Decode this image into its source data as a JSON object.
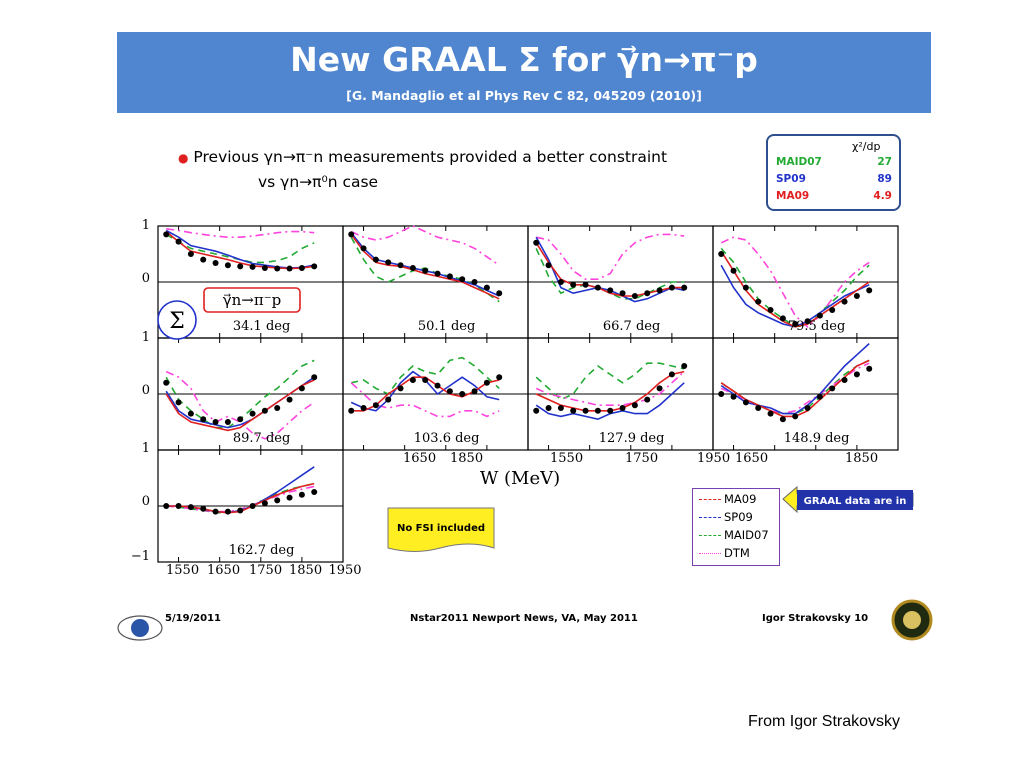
{
  "slide": {
    "title": "New GRAAL Σ for γ⃗n→π⁻p",
    "reference": "[G. Mandaglio et al Phys Rev C 82, 045209 (2010)]",
    "bullet_line1": "Previous γn→π⁻n measurements provided a better constraint",
    "bullet_line2": "vs γn→π⁰n case",
    "chi2_header": "χ²/dp",
    "chi2_rows": [
      {
        "name": "MAID07",
        "value": "27",
        "color": "#22aa33"
      },
      {
        "name": "SP09",
        "value": "89",
        "color": "#2233cc"
      },
      {
        "name": "MA09",
        "value": "4.9",
        "color": "#e02020"
      }
    ],
    "reaction_label": "γ⃗n→π⁻p",
    "sigma_symbol": "Σ",
    "note": "No FSI included",
    "graal_arrow_text": "GRAAL data are in",
    "footer_date": "5/19/2011",
    "footer_conf": "Nstar2011 Newport News, VA, May 2011",
    "footer_author": "Igor Strakovsky   10",
    "caption": "From Igor Strakovsky"
  },
  "chart_data": {
    "type": "line",
    "xlabel": "W (MeV)",
    "ylabel": "",
    "xlim": [
      1500,
      1950
    ],
    "ylim": [
      -1,
      1
    ],
    "xticks": [
      1550,
      1650,
      1750,
      1850,
      1950
    ],
    "x_tick_labels_row3": [
      "1550",
      "1650",
      "1750",
      "1850"
    ],
    "x_tick_labels_row2": [
      "1650",
      "1850",
      "1550",
      "1750",
      "1950",
      "1650",
      "1850"
    ],
    "y_tick_labels": [
      "1",
      "0",
      "1",
      "0",
      "1",
      "0",
      "1",
      "0",
      "−1"
    ],
    "legend": [
      {
        "name": "MA09",
        "color": "#e02020",
        "style": "dashed"
      },
      {
        "name": "SP09",
        "color": "#2233cc",
        "style": "dashed"
      },
      {
        "name": "MAID07",
        "color": "#22aa33",
        "style": "dashed"
      },
      {
        "name": "DTM",
        "color": "#ff44dd",
        "style": "dashdot"
      }
    ],
    "panels": [
      {
        "label": "34.1 deg",
        "x": [
          1520,
          1550,
          1580,
          1610,
          1640,
          1670,
          1700,
          1730,
          1760,
          1790,
          1820,
          1850,
          1880
        ],
        "data": [
          0.85,
          0.72,
          0.5,
          0.4,
          0.34,
          0.3,
          0.28,
          0.27,
          0.25,
          0.24,
          0.24,
          0.25,
          0.28
        ],
        "MA09": [
          0.9,
          0.72,
          0.55,
          0.5,
          0.45,
          0.4,
          0.34,
          0.29,
          0.27,
          0.25,
          0.24,
          0.25,
          0.28
        ],
        "SP09": [
          0.92,
          0.8,
          0.65,
          0.6,
          0.55,
          0.48,
          0.4,
          0.33,
          0.3,
          0.27,
          0.25,
          0.26,
          0.3
        ],
        "MAID07": [
          0.85,
          0.72,
          0.6,
          0.55,
          0.5,
          0.45,
          0.4,
          0.35,
          0.35,
          0.38,
          0.45,
          0.6,
          0.7
        ],
        "DTM": [
          0.95,
          0.92,
          0.88,
          0.85,
          0.82,
          0.8,
          0.8,
          0.82,
          0.85,
          0.88,
          0.9,
          0.9,
          0.88
        ]
      },
      {
        "label": "50.1 deg",
        "x": [
          1520,
          1550,
          1580,
          1610,
          1640,
          1670,
          1700,
          1730,
          1760,
          1790,
          1820,
          1850,
          1880
        ],
        "data": [
          0.85,
          0.6,
          0.4,
          0.35,
          0.3,
          0.25,
          0.2,
          0.15,
          0.1,
          0.05,
          0.0,
          -0.1,
          -0.2
        ],
        "MA09": [
          0.85,
          0.55,
          0.35,
          0.3,
          0.28,
          0.22,
          0.15,
          0.1,
          0.05,
          0.0,
          -0.1,
          -0.2,
          -0.3
        ],
        "SP09": [
          0.88,
          0.6,
          0.4,
          0.35,
          0.3,
          0.25,
          0.2,
          0.15,
          0.08,
          0.02,
          -0.05,
          -0.15,
          -0.25
        ],
        "MAID07": [
          0.8,
          0.4,
          0.1,
          0.0,
          0.1,
          0.2,
          0.25,
          0.15,
          0.1,
          0.05,
          -0.05,
          -0.2,
          -0.35
        ],
        "DTM": [
          0.9,
          0.8,
          0.75,
          0.8,
          0.9,
          1.0,
          0.9,
          0.8,
          0.75,
          0.7,
          0.6,
          0.45,
          0.3
        ]
      },
      {
        "label": "66.7 deg",
        "x": [
          1520,
          1550,
          1580,
          1610,
          1640,
          1670,
          1700,
          1730,
          1760,
          1790,
          1820,
          1850,
          1880
        ],
        "data": [
          0.7,
          0.3,
          0.0,
          -0.05,
          -0.05,
          -0.1,
          -0.15,
          -0.2,
          -0.25,
          -0.2,
          -0.15,
          -0.1,
          -0.1
        ],
        "MA09": [
          0.7,
          0.35,
          0.05,
          -0.05,
          -0.05,
          -0.1,
          -0.2,
          -0.25,
          -0.25,
          -0.2,
          -0.15,
          -0.1,
          -0.1
        ],
        "SP09": [
          0.8,
          0.4,
          -0.1,
          -0.2,
          -0.15,
          -0.1,
          -0.15,
          -0.25,
          -0.35,
          -0.3,
          -0.2,
          -0.1,
          -0.15
        ],
        "MAID07": [
          0.6,
          0.1,
          -0.2,
          -0.1,
          -0.05,
          -0.1,
          -0.2,
          -0.3,
          -0.3,
          -0.2,
          -0.1,
          0.0,
          0.0
        ],
        "DTM": [
          0.8,
          0.75,
          0.5,
          0.2,
          0.05,
          0.05,
          0.15,
          0.5,
          0.7,
          0.8,
          0.85,
          0.85,
          0.82
        ]
      },
      {
        "label": "79.5 deg",
        "x": [
          1520,
          1550,
          1580,
          1610,
          1640,
          1670,
          1700,
          1730,
          1760,
          1790,
          1820,
          1850,
          1880
        ],
        "data": [
          0.5,
          0.2,
          -0.1,
          -0.35,
          -0.5,
          -0.65,
          -0.75,
          -0.7,
          -0.6,
          -0.5,
          -0.35,
          -0.25,
          -0.15
        ],
        "MA09": [
          0.55,
          0.2,
          -0.15,
          -0.4,
          -0.55,
          -0.7,
          -0.8,
          -0.75,
          -0.6,
          -0.45,
          -0.3,
          -0.15,
          0.0
        ],
        "SP09": [
          0.3,
          -0.1,
          -0.4,
          -0.55,
          -0.65,
          -0.75,
          -0.8,
          -0.7,
          -0.55,
          -0.4,
          -0.25,
          -0.15,
          -0.05
        ],
        "MAID07": [
          0.6,
          0.35,
          0.0,
          -0.3,
          -0.5,
          -0.65,
          -0.8,
          -0.75,
          -0.55,
          -0.35,
          -0.15,
          0.1,
          0.3
        ],
        "DTM": [
          0.7,
          0.8,
          0.75,
          0.5,
          0.2,
          -0.2,
          -0.6,
          -0.8,
          -0.6,
          -0.3,
          0.0,
          0.2,
          0.35
        ]
      },
      {
        "label": "89.7 deg",
        "x": [
          1520,
          1550,
          1580,
          1610,
          1640,
          1670,
          1700,
          1730,
          1760,
          1790,
          1820,
          1850,
          1880
        ],
        "data": [
          0.2,
          -0.15,
          -0.35,
          -0.45,
          -0.5,
          -0.5,
          -0.45,
          -0.35,
          -0.3,
          -0.25,
          -0.1,
          0.1,
          0.3
        ],
        "MA09": [
          0.0,
          -0.35,
          -0.5,
          -0.55,
          -0.6,
          -0.65,
          -0.6,
          -0.45,
          -0.3,
          -0.15,
          0.0,
          0.15,
          0.25
        ],
        "SP09": [
          0.05,
          -0.3,
          -0.45,
          -0.5,
          -0.55,
          -0.6,
          -0.55,
          -0.45,
          -0.3,
          -0.15,
          0.0,
          0.15,
          0.3
        ],
        "MAID07": [
          0.3,
          -0.1,
          -0.3,
          -0.45,
          -0.6,
          -0.6,
          -0.45,
          -0.25,
          -0.05,
          0.1,
          0.3,
          0.5,
          0.6
        ],
        "DTM": [
          0.4,
          0.3,
          0.1,
          -0.3,
          -0.5,
          -0.4,
          -0.5,
          -0.7,
          -0.8,
          -0.7,
          -0.5,
          -0.3,
          -0.15
        ]
      },
      {
        "label": "103.6 deg",
        "x": [
          1520,
          1550,
          1580,
          1610,
          1640,
          1670,
          1700,
          1730,
          1760,
          1790,
          1820,
          1850,
          1880
        ],
        "data": [
          -0.3,
          -0.25,
          -0.2,
          -0.1,
          0.1,
          0.25,
          0.25,
          0.15,
          0.05,
          0.0,
          0.05,
          0.2,
          0.3
        ],
        "MA09": [
          -0.3,
          -0.3,
          -0.2,
          0.0,
          0.15,
          0.3,
          0.3,
          0.15,
          0.0,
          -0.05,
          0.05,
          0.2,
          0.25
        ],
        "SP09": [
          -0.15,
          -0.25,
          -0.3,
          -0.1,
          0.2,
          0.4,
          0.25,
          0.0,
          0.15,
          0.3,
          0.15,
          -0.05,
          -0.1
        ],
        "MAID07": [
          0.2,
          0.25,
          0.1,
          0.0,
          0.3,
          0.5,
          0.4,
          0.35,
          0.6,
          0.65,
          0.5,
          0.3,
          0.1
        ],
        "DTM": [
          0.2,
          0.0,
          -0.2,
          -0.25,
          -0.2,
          -0.2,
          -0.3,
          -0.4,
          -0.4,
          -0.3,
          -0.3,
          -0.4,
          -0.3
        ]
      },
      {
        "label": "127.9 deg",
        "x": [
          1520,
          1550,
          1580,
          1610,
          1640,
          1670,
          1700,
          1730,
          1760,
          1790,
          1820,
          1850,
          1880
        ],
        "data": [
          -0.3,
          -0.25,
          -0.25,
          -0.3,
          -0.3,
          -0.3,
          -0.3,
          -0.25,
          -0.2,
          -0.1,
          0.1,
          0.35,
          0.5
        ],
        "MA09": [
          0.0,
          -0.1,
          -0.2,
          -0.25,
          -0.3,
          -0.3,
          -0.3,
          -0.25,
          -0.15,
          0.0,
          0.2,
          0.35,
          0.4
        ],
        "SP09": [
          -0.2,
          -0.35,
          -0.4,
          -0.35,
          -0.4,
          -0.45,
          -0.35,
          -0.3,
          -0.35,
          -0.35,
          -0.2,
          0.0,
          0.2
        ],
        "MAID07": [
          0.3,
          0.1,
          -0.1,
          0.0,
          0.3,
          0.5,
          0.35,
          0.2,
          0.35,
          0.55,
          0.55,
          0.5,
          0.45
        ],
        "DTM": [
          0.1,
          0.0,
          -0.05,
          -0.1,
          -0.15,
          -0.2,
          -0.2,
          -0.2,
          -0.15,
          -0.1,
          0.0,
          0.2,
          0.4
        ]
      },
      {
        "label": "148.9 deg",
        "x": [
          1520,
          1550,
          1580,
          1610,
          1640,
          1670,
          1700,
          1730,
          1760,
          1790,
          1820,
          1850,
          1880
        ],
        "data": [
          0.0,
          -0.05,
          -0.15,
          -0.25,
          -0.35,
          -0.45,
          -0.4,
          -0.25,
          -0.05,
          0.1,
          0.25,
          0.35,
          0.45
        ],
        "MA09": [
          0.2,
          0.05,
          -0.1,
          -0.2,
          -0.3,
          -0.4,
          -0.4,
          -0.3,
          -0.1,
          0.1,
          0.3,
          0.5,
          0.6
        ],
        "SP09": [
          0.15,
          0.0,
          -0.15,
          -0.2,
          -0.25,
          -0.35,
          -0.35,
          -0.2,
          0.0,
          0.25,
          0.5,
          0.7,
          0.9
        ],
        "MAID07": [
          0.2,
          0.05,
          -0.1,
          -0.2,
          -0.3,
          -0.35,
          -0.35,
          -0.25,
          -0.05,
          0.15,
          0.35,
          0.5,
          0.6
        ],
        "DTM": [
          0.1,
          0.0,
          -0.1,
          -0.2,
          -0.3,
          -0.35,
          -0.3,
          -0.15,
          0.0,
          0.15,
          0.3,
          0.45,
          0.55
        ]
      },
      {
        "label": "162.7 deg",
        "x": [
          1520,
          1550,
          1580,
          1610,
          1640,
          1670,
          1700,
          1730,
          1760,
          1790,
          1820,
          1850,
          1880
        ],
        "data": [
          0.0,
          0.0,
          -0.02,
          -0.05,
          -0.1,
          -0.1,
          -0.08,
          0.0,
          0.05,
          0.1,
          0.15,
          0.2,
          0.25
        ],
        "MA09": [
          0.0,
          0.0,
          -0.02,
          -0.05,
          -0.1,
          -0.12,
          -0.1,
          0.0,
          0.1,
          0.2,
          0.28,
          0.35,
          0.4
        ],
        "SP09": [
          0.0,
          0.0,
          -0.02,
          -0.06,
          -0.1,
          -0.12,
          -0.08,
          0.0,
          0.12,
          0.25,
          0.4,
          0.55,
          0.7
        ],
        "MAID07": [
          0.0,
          -0.02,
          -0.05,
          -0.08,
          -0.12,
          -0.12,
          -0.08,
          0.02,
          0.12,
          0.22,
          0.3,
          0.35,
          0.4
        ],
        "DTM": [
          0.0,
          -0.02,
          -0.05,
          -0.08,
          -0.1,
          -0.1,
          -0.06,
          0.02,
          0.1,
          0.18,
          0.25,
          0.3,
          0.35
        ]
      }
    ]
  }
}
